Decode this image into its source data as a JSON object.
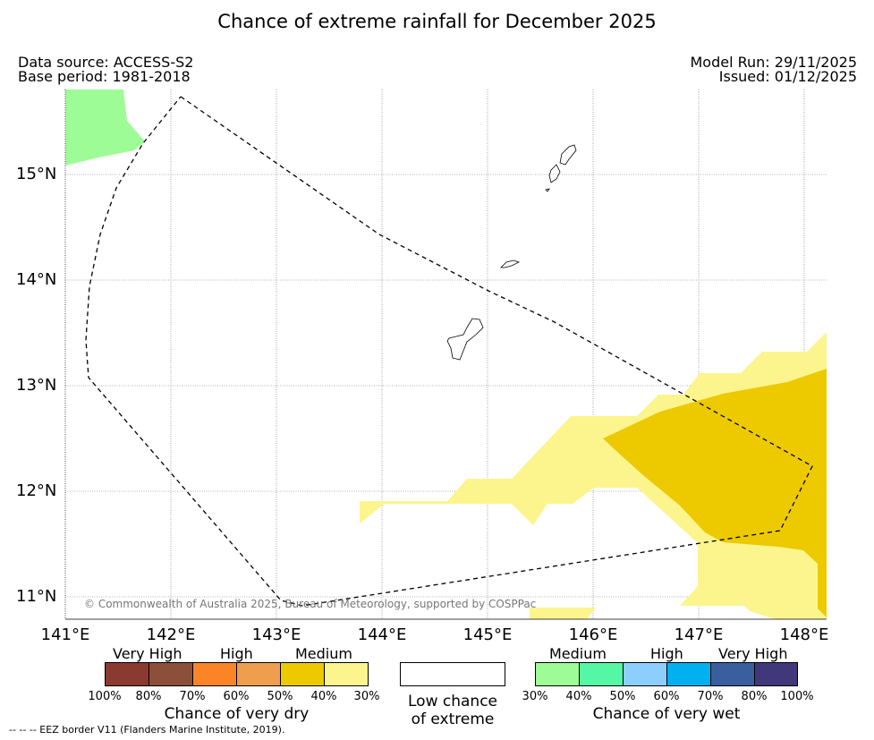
{
  "title": "Chance of extreme rainfall for December 2025",
  "meta": {
    "data_source": "Data source: ACCESS-S2",
    "base_period": "Base period: 1981-2018",
    "model_run": "Model Run: 29/11/2025",
    "issued": "Issued: 01/12/2025"
  },
  "axes": {
    "lat_labels": [
      "15°N",
      "14°N",
      "13°N",
      "12°N",
      "11°N"
    ],
    "lon_labels": [
      "141°E",
      "142°E",
      "143°E",
      "144°E",
      "145°E",
      "146°E",
      "147°E",
      "148°E"
    ]
  },
  "copyright": "© Commonwealth of Australia 2025, Bureau of Meteorology, supported by COSPPac",
  "eez_note": "--  --  -- EEZ border V11 (Flanders Marine Institute, 2019).",
  "legend": {
    "dry": {
      "headings": [
        "Very High",
        "High",
        "Medium"
      ],
      "colors": [
        "#8b3a2f",
        "#8b4f3a",
        "#fb8526",
        "#ee9e4c",
        "#edc900",
        "#fcf58e"
      ],
      "ticks": [
        "100%",
        "80%",
        "70%",
        "60%",
        "50%",
        "40%",
        "30%"
      ],
      "caption": "Chance of very dry"
    },
    "low": {
      "caption_line1": "Low chance",
      "caption_line2": "of extreme",
      "color": "#ffffff"
    },
    "wet": {
      "headings": [
        "Medium",
        "High",
        "Very High"
      ],
      "colors": [
        "#9efc96",
        "#55f7a4",
        "#8ccfff",
        "#00b0f0",
        "#3a5f9e",
        "#40387a"
      ],
      "ticks": [
        "30%",
        "40%",
        "50%",
        "60%",
        "70%",
        "80%",
        "100%"
      ],
      "caption": "Chance of very wet"
    }
  }
}
